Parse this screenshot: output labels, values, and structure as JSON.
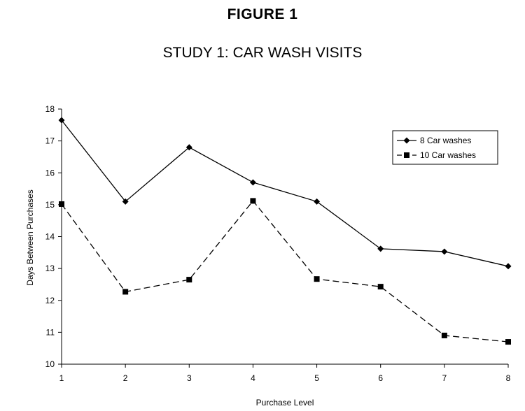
{
  "figure_label": "FIGURE 1",
  "chart_data": {
    "type": "line",
    "title": "STUDY 1: CAR WASH VISITS",
    "xlabel": "Purchase Level",
    "ylabel": "Days Between Purchases",
    "x": [
      1,
      2,
      3,
      4,
      5,
      6,
      7,
      8
    ],
    "xlim": [
      1,
      8
    ],
    "ylim": [
      10,
      18
    ],
    "yticks": [
      10,
      11,
      12,
      13,
      14,
      15,
      16,
      17,
      18
    ],
    "grid": false,
    "legend_position": "top-right",
    "series": [
      {
        "name": "8 Car washes",
        "marker": "diamond",
        "line_style": "solid",
        "color": "#000000",
        "values": [
          17.65,
          15.1,
          16.8,
          15.7,
          15.1,
          13.62,
          13.53,
          13.07
        ]
      },
      {
        "name": "10 Car washes",
        "marker": "square",
        "line_style": "dashed",
        "color": "#000000",
        "values": [
          15.02,
          12.27,
          12.65,
          15.12,
          12.67,
          12.43,
          10.9,
          10.7
        ]
      }
    ]
  }
}
